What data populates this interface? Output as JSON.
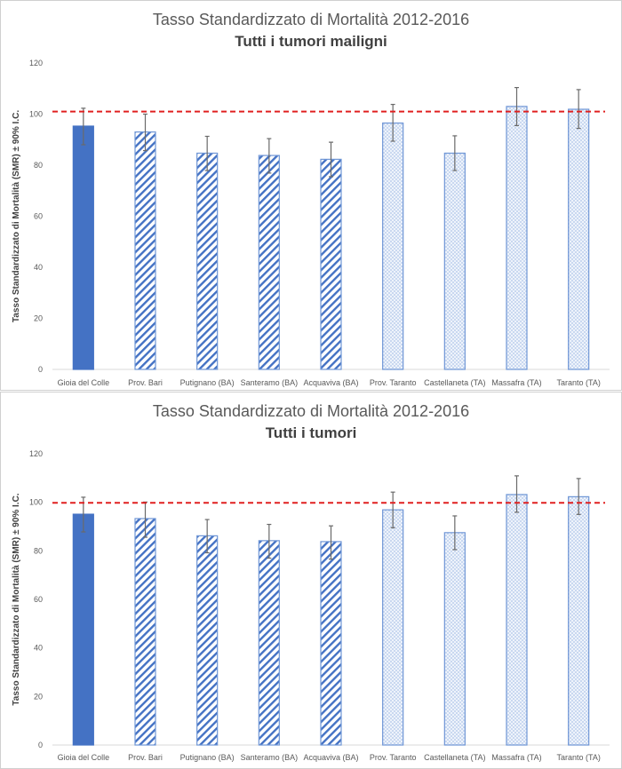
{
  "chart_data": [
    {
      "type": "bar",
      "title": "Tasso Standardizzato di Mortalità 2012-2016",
      "subtitle": "Tutti i tumori mailigni",
      "xlabel": "",
      "ylabel": "Tasso Standardizzato di Mortalità (SMR) ± 90% I.C.",
      "ylim": [
        0,
        120
      ],
      "yticks": [
        0,
        20,
        40,
        60,
        80,
        100,
        120
      ],
      "grid": false,
      "reference_line": {
        "value": 101,
        "color": "#e02020",
        "style": "dashed"
      },
      "categories": [
        "Gioia del Colle",
        "Prov. Bari",
        "Putignano (BA)",
        "Santeramo (BA)",
        "Acquaviva (BA)",
        "Prov. Taranto",
        "Castellaneta (TA)",
        "Massafra (TA)",
        "Taranto (TA)"
      ],
      "values": [
        95.3,
        93.0,
        84.7,
        83.8,
        82.3,
        96.5,
        84.7,
        103.0,
        101.9
      ],
      "ci_lower": [
        88.0,
        85.7,
        77.9,
        76.9,
        75.5,
        89.4,
        77.9,
        95.5,
        94.4
      ],
      "ci_upper": [
        102.3,
        100.0,
        91.3,
        90.4,
        89.0,
        103.8,
        91.5,
        110.4,
        109.6
      ],
      "fill_styles": [
        "solid",
        "diagonal",
        "diagonal",
        "diagonal",
        "diagonal",
        "dotted",
        "dotted",
        "dotted",
        "dotted"
      ]
    },
    {
      "type": "bar",
      "title": "Tasso Standardizzato di Mortalità 2012-2016",
      "subtitle": "Tutti i tumori",
      "xlabel": "",
      "ylabel": "Tasso Standardizzato di Mortalità (SMR) ± 90% I.C.",
      "ylim": [
        0,
        120
      ],
      "yticks": [
        0,
        20,
        40,
        60,
        80,
        100,
        120
      ],
      "grid": false,
      "reference_line": {
        "value": 99.8,
        "color": "#e02020",
        "style": "dashed"
      },
      "categories": [
        "Gioia del Colle",
        "Prov. Bari",
        "Putignano (BA)",
        "Santeramo (BA)",
        "Acquaviva (BA)",
        "Prov. Taranto",
        "Castellaneta (TA)",
        "Massafra (TA)",
        "Taranto (TA)"
      ],
      "values": [
        95.1,
        93.3,
        86.2,
        84.2,
        83.8,
        96.9,
        87.5,
        103.2,
        102.3
      ],
      "ci_lower": [
        87.8,
        85.6,
        79.2,
        77.0,
        76.6,
        89.5,
        80.5,
        95.9,
        95.0
      ],
      "ci_upper": [
        102.1,
        100.1,
        92.9,
        90.9,
        90.3,
        104.2,
        94.4,
        110.9,
        109.8
      ],
      "fill_styles": [
        "solid",
        "diagonal",
        "diagonal",
        "diagonal",
        "diagonal",
        "dotted",
        "dotted",
        "dotted",
        "dotted"
      ]
    }
  ],
  "colors": {
    "bar_primary": "#4472c4",
    "bar_border": "#6f96d6",
    "dotted_fill": "#c9d8f0",
    "error_bar": "#6a6a6a",
    "reference_line": "#e02020",
    "axis": "#d9d9d9",
    "text": "#595959"
  }
}
